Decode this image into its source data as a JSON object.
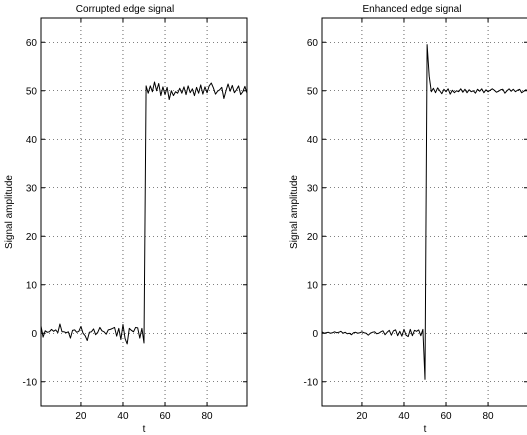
{
  "chart_data": [
    {
      "type": "line",
      "title": "Corrupted edge signal",
      "xlabel": "t",
      "ylabel": "Signal amplitude",
      "xlim": [
        1,
        99
      ],
      "ylim": [
        -15,
        65
      ],
      "xticks": [
        20,
        40,
        60,
        80
      ],
      "yticks": [
        -10,
        0,
        10,
        20,
        30,
        40,
        50,
        60
      ],
      "grid": true,
      "x_start": 1,
      "y": [
        1.5,
        -0.8,
        0.5,
        0.2,
        0.3,
        0.8,
        0.4,
        0.7,
        0.1,
        1.9,
        0.3,
        0.3,
        0.1,
        0.3,
        -1.0,
        0.6,
        0.7,
        0.2,
        0.4,
        1.4,
        0.0,
        -0.5,
        -1.5,
        0.2,
        0.3,
        0.9,
        -0.3,
        0.2,
        1.2,
        0.5,
        0.3,
        -0.2,
        0.7,
        0.8,
        1.0,
        1.2,
        -0.6,
        1.0,
        -1.3,
        1.8,
        -1.1,
        -2.2,
        1.0,
        0.6,
        0.3,
        1.2,
        1.1,
        -1.0,
        1.0,
        -2.0,
        51.0,
        49.5,
        51.0,
        49.8,
        51.8,
        50.0,
        51.5,
        49.0,
        50.8,
        49.2,
        50.7,
        48.2,
        50.0,
        49.0,
        49.8,
        49.5,
        50.5,
        49.5,
        50.8,
        49.2,
        51.0,
        49.6,
        50.4,
        49.0,
        50.7,
        49.5,
        51.2,
        49.3,
        50.8,
        49.6,
        51.0,
        51.6,
        50.6,
        49.3,
        49.9,
        50.2,
        50.7,
        48.4,
        50.0,
        51.4,
        49.9,
        51.1,
        49.6,
        50.2,
        51.0,
        49.2,
        49.8,
        50.9,
        49.5
      ]
    },
    {
      "type": "line",
      "title": "Enhanced edge signal",
      "xlabel": "t",
      "ylabel": "Signal amplitude",
      "xlim": [
        1,
        99
      ],
      "ylim": [
        -15,
        65
      ],
      "xticks": [
        20,
        40,
        60,
        80
      ],
      "yticks": [
        -10,
        0,
        10,
        20,
        30,
        40,
        50,
        60
      ],
      "grid": true,
      "x_start": 1,
      "y": [
        0.3,
        0.0,
        0.1,
        0.2,
        0.0,
        0.1,
        0.3,
        0.1,
        0.2,
        0.4,
        0.0,
        0.2,
        -0.1,
        0.0,
        -0.3,
        0.1,
        0.2,
        0.0,
        0.1,
        0.3,
        0.1,
        0.0,
        -0.4,
        0.0,
        0.2,
        0.3,
        -0.1,
        0.0,
        0.3,
        0.5,
        -0.3,
        0.2,
        0.6,
        -0.4,
        0.5,
        0.7,
        -0.5,
        0.4,
        -0.6,
        0.8,
        -0.4,
        -0.7,
        0.8,
        -0.5,
        0.6,
        0.4,
        0.7,
        -0.5,
        0.8,
        -9.5,
        59.5,
        53.0,
        49.8,
        50.5,
        49.6,
        50.6,
        50.0,
        49.4,
        50.3,
        49.8,
        50.4,
        49.3,
        50.1,
        49.6,
        50.0,
        49.8,
        50.4,
        49.7,
        50.3,
        49.6,
        50.2,
        49.8,
        50.0,
        49.5,
        50.3,
        49.9,
        50.4,
        49.6,
        50.2,
        49.8,
        50.1,
        50.4,
        50.1,
        49.7,
        49.9,
        50.2,
        50.3,
        49.5,
        50.0,
        50.4,
        49.9,
        50.3,
        49.8,
        50.1,
        50.3,
        49.6,
        49.9,
        50.2,
        50.0
      ]
    }
  ]
}
